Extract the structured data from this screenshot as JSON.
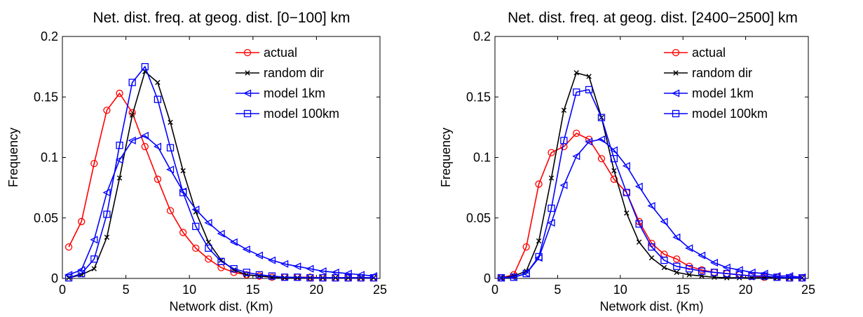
{
  "chart_data": [
    {
      "type": "line",
      "title": "Net. dist. freq. at geog. dist. [0−100] km",
      "xlabel": "Network dist. (Km)",
      "ylabel": "Frequency",
      "xlim": [
        0,
        25
      ],
      "ylim": [
        0,
        0.2
      ],
      "xticks": [
        "0",
        "5",
        "10",
        "15",
        "20",
        "25"
      ],
      "yticks": [
        "0",
        "0.05",
        "0.1",
        "0.15",
        "0.2"
      ],
      "grid": false,
      "legend_position": "top-right",
      "x": [
        0.5,
        1.5,
        2.5,
        3.5,
        4.5,
        5.5,
        6.5,
        7.5,
        8.5,
        9.5,
        10.5,
        11.5,
        12.5,
        13.5,
        14.5,
        15.5,
        16.5,
        17.5,
        18.5,
        19.5,
        20.5,
        21.5,
        22.5,
        23.5,
        24.5
      ],
      "series": [
        {
          "name": "actual",
          "color": "#ff0000",
          "marker": "circle",
          "values": [
            0.026,
            0.047,
            0.095,
            0.139,
            0.153,
            0.137,
            0.109,
            0.082,
            0.056,
            0.038,
            0.025,
            0.016,
            0.009,
            0.005,
            0.003,
            0.002,
            0.001,
            0.001,
            0.001,
            0.001,
            0.0005,
            0.0005,
            0.0005,
            0.0005,
            0.0005
          ]
        },
        {
          "name": "random dir",
          "color": "#000000",
          "marker": "x",
          "values": [
            0.0005,
            0.003,
            0.008,
            0.034,
            0.083,
            0.135,
            0.171,
            0.162,
            0.129,
            0.089,
            0.055,
            0.03,
            0.015,
            0.007,
            0.003,
            0.002,
            0.001,
            0.0005,
            0.0005,
            0.0005,
            0.0005,
            0.0005,
            0.0005,
            0.0005,
            0.0005
          ]
        },
        {
          "name": "model 1km",
          "color": "#0000ff",
          "marker": "triangle-left",
          "values": [
            0.003,
            0.007,
            0.032,
            0.071,
            0.098,
            0.114,
            0.118,
            0.109,
            0.09,
            0.072,
            0.057,
            0.046,
            0.037,
            0.03,
            0.024,
            0.019,
            0.015,
            0.012,
            0.01,
            0.008,
            0.006,
            0.005,
            0.004,
            0.003,
            0.002
          ]
        },
        {
          "name": "model 100km",
          "color": "#0000ff",
          "marker": "square",
          "values": [
            0.0005,
            0.004,
            0.016,
            0.053,
            0.11,
            0.162,
            0.175,
            0.148,
            0.108,
            0.071,
            0.043,
            0.025,
            0.014,
            0.008,
            0.005,
            0.003,
            0.002,
            0.001,
            0.001,
            0.0005,
            0.0005,
            0.0005,
            0.0005,
            0.0005,
            0.0005
          ]
        }
      ]
    },
    {
      "type": "line",
      "title": "Net. dist. freq. at geog. dist. [2400−2500] km",
      "xlabel": "Network dist. (Km)",
      "ylabel": "Frequency",
      "xlim": [
        0,
        25
      ],
      "ylim": [
        0,
        0.2
      ],
      "xticks": [
        "0",
        "5",
        "10",
        "15",
        "20",
        "25"
      ],
      "yticks": [
        "0",
        "0.05",
        "0.1",
        "0.15",
        "0.2"
      ],
      "grid": false,
      "legend_position": "top-right",
      "x": [
        0.5,
        1.5,
        2.5,
        3.5,
        4.5,
        5.5,
        6.5,
        7.5,
        8.5,
        9.5,
        10.5,
        11.5,
        12.5,
        13.5,
        14.5,
        15.5,
        16.5,
        17.5,
        18.5,
        19.5,
        20.5,
        21.5,
        22.5,
        23.5,
        24.5
      ],
      "series": [
        {
          "name": "actual",
          "color": "#ff0000",
          "marker": "circle",
          "values": [
            0.0005,
            0.003,
            0.026,
            0.078,
            0.104,
            0.109,
            0.12,
            0.115,
            0.099,
            0.082,
            0.071,
            0.047,
            0.029,
            0.02,
            0.016,
            0.01,
            0.007,
            0.005,
            0.004,
            0.003,
            0.002,
            0.001,
            0.001,
            0.0005,
            0.0005
          ]
        },
        {
          "name": "random dir",
          "color": "#000000",
          "marker": "x",
          "values": [
            0.0005,
            0.002,
            0.006,
            0.031,
            0.083,
            0.139,
            0.17,
            0.167,
            0.133,
            0.089,
            0.054,
            0.03,
            0.017,
            0.009,
            0.005,
            0.003,
            0.002,
            0.001,
            0.0005,
            0.0005,
            0.0005,
            0.0005,
            0.0005,
            0.0005,
            0.0005
          ]
        },
        {
          "name": "model 1km",
          "color": "#0000ff",
          "marker": "triangle-left",
          "values": [
            0.0005,
            0.001,
            0.004,
            0.017,
            0.046,
            0.077,
            0.101,
            0.113,
            0.115,
            0.106,
            0.093,
            0.076,
            0.06,
            0.047,
            0.034,
            0.025,
            0.019,
            0.013,
            0.009,
            0.007,
            0.005,
            0.004,
            0.002,
            0.002,
            0.001
          ]
        },
        {
          "name": "model 100km",
          "color": "#0000ff",
          "marker": "square",
          "values": [
            0.0005,
            0.001,
            0.004,
            0.018,
            0.058,
            0.114,
            0.154,
            0.156,
            0.133,
            0.099,
            0.071,
            0.045,
            0.026,
            0.015,
            0.01,
            0.008,
            0.006,
            0.005,
            0.004,
            0.003,
            0.002,
            0.002,
            0.001,
            0.0005,
            0.0005
          ]
        }
      ]
    }
  ]
}
